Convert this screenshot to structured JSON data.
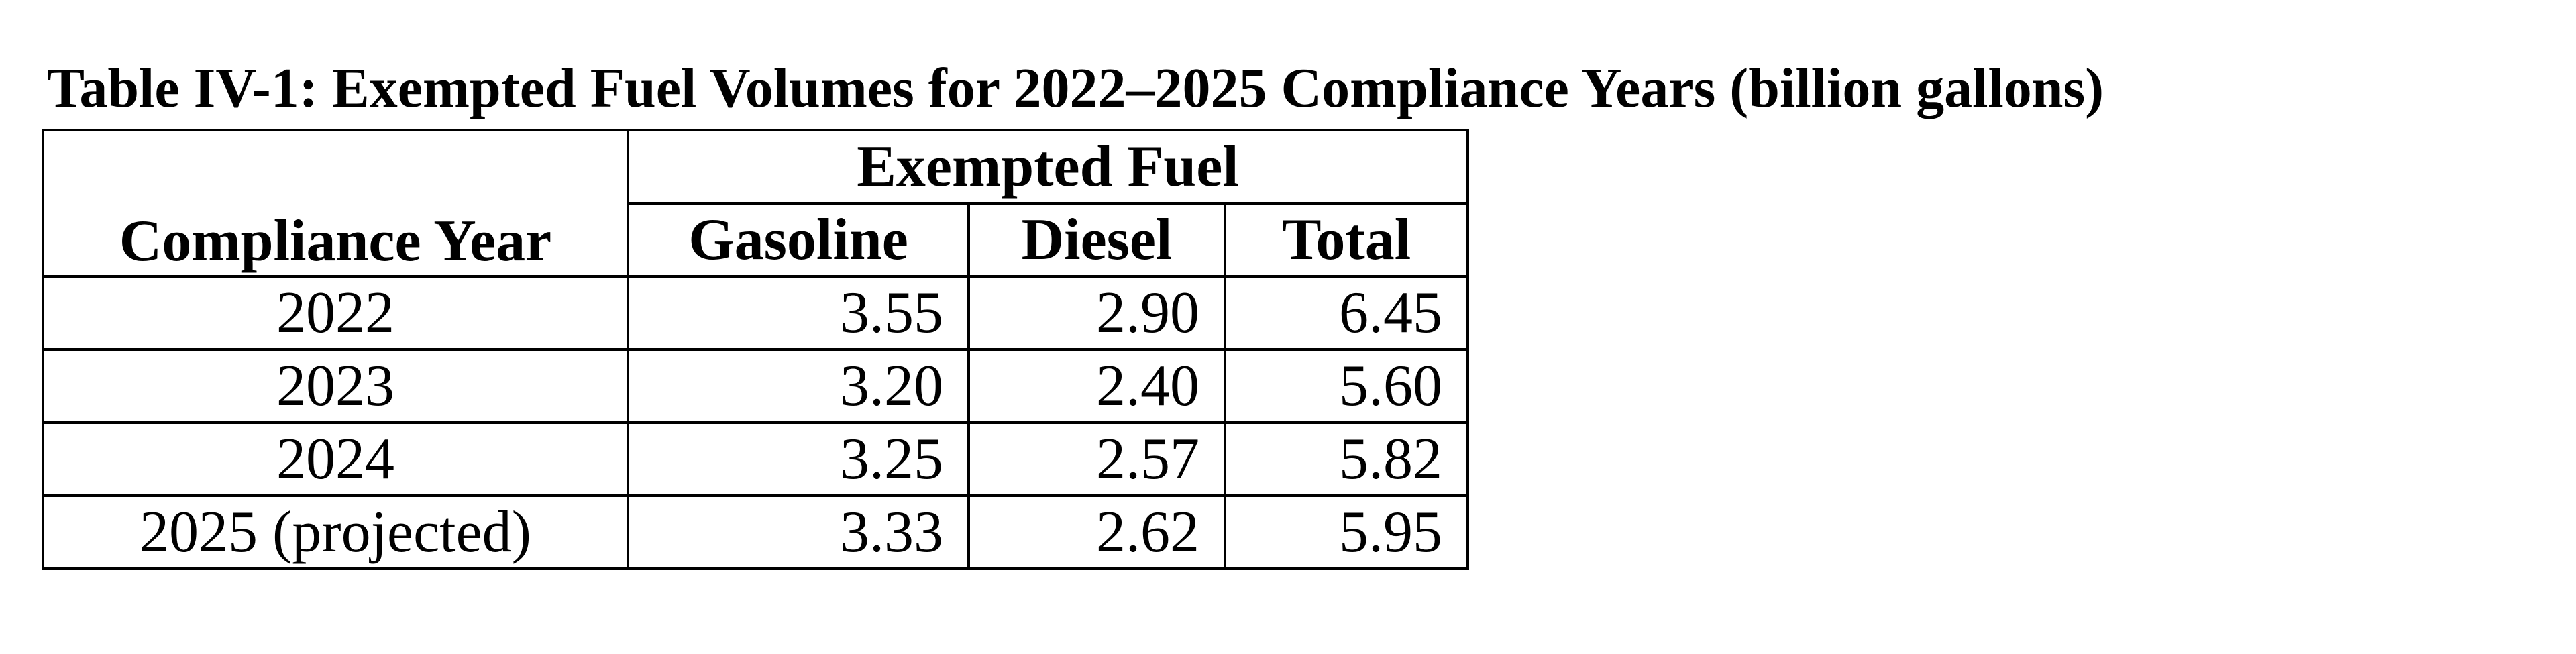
{
  "caption": "Table IV-1: Exempted Fuel Volumes for 2022–2025 Compliance Years (billion gallons)",
  "table": {
    "group_header": "Exempted Fuel",
    "columns": [
      "Compliance Year",
      "Gasoline",
      "Diesel",
      "Total"
    ],
    "rows": [
      {
        "year": "2022",
        "gasoline": "3.55",
        "diesel": "2.90",
        "total": "6.45"
      },
      {
        "year": "2023",
        "gasoline": "3.20",
        "diesel": "2.40",
        "total": "5.60"
      },
      {
        "year": "2024",
        "gasoline": "3.25",
        "diesel": "2.57",
        "total": "5.82"
      },
      {
        "year": "2025 (projected)",
        "gasoline": "3.33",
        "diesel": "2.62",
        "total": "5.95"
      }
    ]
  }
}
